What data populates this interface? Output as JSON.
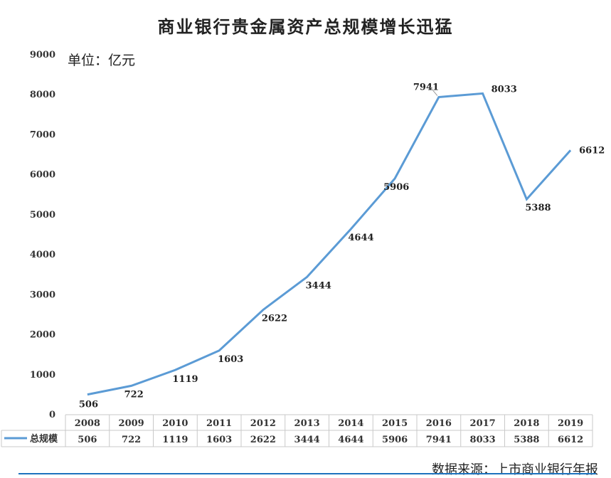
{
  "chart_data": {
    "type": "line",
    "title": "商业银行贵金属资产总规模增长迅猛",
    "unit_note": "单位：亿元",
    "categories": [
      "2008",
      "2009",
      "2010",
      "2011",
      "2012",
      "2013",
      "2014",
      "2015",
      "2016",
      "2017",
      "2018",
      "2019"
    ],
    "series": [
      {
        "name": "总规模",
        "values": [
          506,
          722,
          1119,
          1603,
          2622,
          3444,
          4644,
          5906,
          7941,
          8033,
          5388,
          6612
        ],
        "color": "#5b9bd5"
      }
    ],
    "yticks": [
      "0",
      "1000",
      "2000",
      "3000",
      "4000",
      "5000",
      "6000",
      "7000",
      "8000",
      "9000"
    ],
    "ylim": [
      0,
      9000
    ],
    "grid": false,
    "legend": "data-table",
    "data_table": true,
    "source": "数据来源：上市商业银行年报"
  }
}
